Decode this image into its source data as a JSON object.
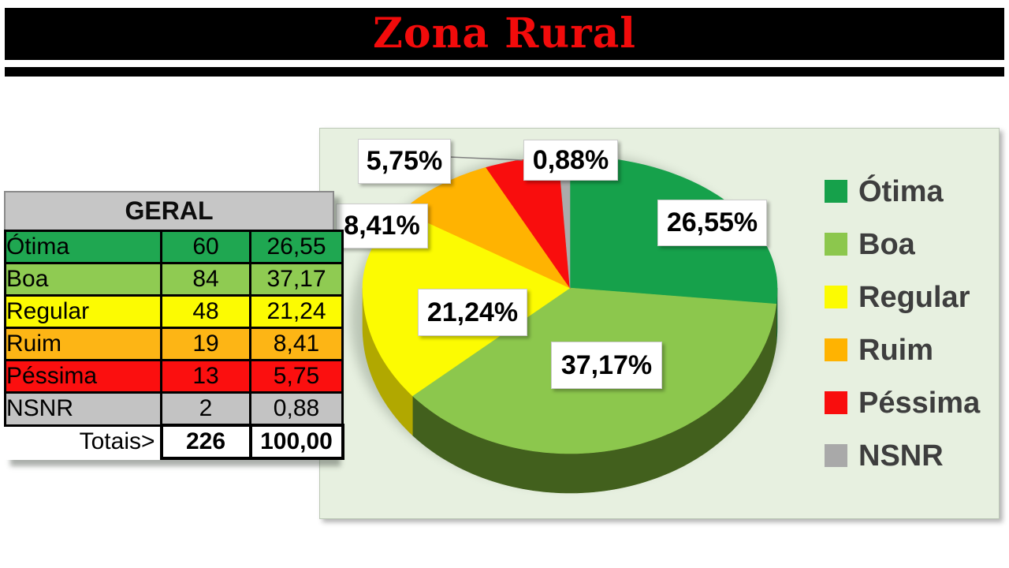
{
  "title": "Zona Rural",
  "table": {
    "header": "GERAL",
    "rows": [
      {
        "label": "Ótima",
        "count": "60",
        "pct": "26,55",
        "color": "#1fa751"
      },
      {
        "label": "Boa",
        "count": "84",
        "pct": "37,17",
        "color": "#8fcb52"
      },
      {
        "label": "Regular",
        "count": "48",
        "pct": "21,24",
        "color": "#fcfb02"
      },
      {
        "label": "Ruim",
        "count": "19",
        "pct": "8,41",
        "color": "#fdb515"
      },
      {
        "label": "Péssima",
        "count": "13",
        "pct": "5,75",
        "color": "#fb0f0f"
      },
      {
        "label": "NSNR",
        "count": "2",
        "pct": "0,88",
        "color": "#c3c3c3"
      }
    ],
    "totals": {
      "label": "Totais>",
      "count": "226",
      "pct": "100,00"
    }
  },
  "chart_data": {
    "type": "pie",
    "is_3d": true,
    "labels": [
      "Ótima",
      "Boa",
      "Regular",
      "Ruim",
      "Péssima",
      "NSNR"
    ],
    "values": [
      26.55,
      37.17,
      21.24,
      8.41,
      5.75,
      0.88
    ],
    "counts": [
      60,
      84,
      48,
      19,
      13,
      2
    ],
    "data_labels": [
      "26,55%",
      "37,17%",
      "21,24%",
      "8,41%",
      "5,75%",
      "0,88%"
    ],
    "colors": [
      "#16a14b",
      "#8cc74d",
      "#fcfb02",
      "#ffb301",
      "#f90d0d",
      "#ababab"
    ],
    "side_colors": [
      "#0f6230",
      "#42601d",
      "#b1a800",
      "#9b6d00",
      "#9b0000",
      "#6e6e6e"
    ],
    "start_angle_deg": 0,
    "direction": "clockwise",
    "legend_position": "right",
    "background": "#e7f0e0"
  },
  "legend": {
    "items": [
      {
        "label": "Ótima",
        "color": "#16a14b"
      },
      {
        "label": "Boa",
        "color": "#8cc74d"
      },
      {
        "label": "Regular",
        "color": "#fcfb02"
      },
      {
        "label": "Ruim",
        "color": "#ffb301"
      },
      {
        "label": "Péssima",
        "color": "#f90d0d"
      },
      {
        "label": "NSNR",
        "color": "#a9a9a9"
      }
    ]
  }
}
